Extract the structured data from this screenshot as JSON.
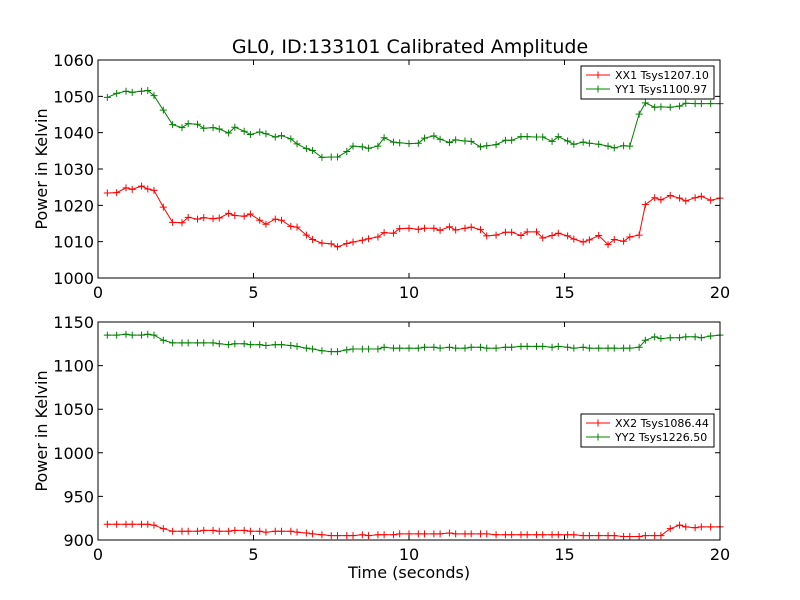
{
  "title": "GL0, ID:133101 Calibrated Amplitude",
  "chart_data": [
    {
      "type": "line",
      "title": "GL0, ID:133101 Calibrated Amplitude",
      "xlabel": "",
      "ylabel": "Power in Kelvin",
      "xlim": [
        0,
        20
      ],
      "ylim": [
        1000,
        1060
      ],
      "xticks": [
        0,
        5,
        10,
        15,
        20
      ],
      "xtick_labels": [
        "0",
        "5",
        "10",
        "15",
        "20"
      ],
      "yticks": [
        1000,
        1010,
        1020,
        1030,
        1040,
        1050,
        1060
      ],
      "ytick_labels": [
        "1000",
        "1010",
        "1020",
        "1030",
        "1040",
        "1050",
        "1060"
      ],
      "grid": false,
      "legend_position": "top-right",
      "x": [
        0.3,
        0.6,
        0.9,
        1.1,
        1.4,
        1.6,
        1.8,
        2.1,
        2.4,
        2.7,
        2.9,
        3.2,
        3.4,
        3.7,
        3.9,
        4.2,
        4.4,
        4.7,
        4.9,
        5.2,
        5.4,
        5.7,
        5.9,
        6.2,
        6.4,
        6.7,
        6.9,
        7.2,
        7.5,
        7.7,
        8.0,
        8.2,
        8.5,
        8.7,
        9.0,
        9.2,
        9.5,
        9.7,
        10.0,
        10.3,
        10.5,
        10.8,
        11.0,
        11.3,
        11.5,
        11.8,
        12.0,
        12.3,
        12.5,
        12.8,
        13.1,
        13.3,
        13.6,
        13.8,
        14.1,
        14.3,
        14.6,
        14.8,
        15.1,
        15.3,
        15.6,
        15.8,
        16.1,
        16.4,
        16.6,
        16.9,
        17.1,
        17.4,
        17.6,
        17.9,
        18.1,
        18.4,
        18.7,
        18.9,
        19.2,
        19.4,
        19.7,
        20.0
      ],
      "series": [
        {
          "name": "XX1 Tsys1207.10",
          "color": "#ff0000",
          "values": [
            1023.4,
            1023.5,
            1024.8,
            1024.4,
            1025.3,
            1024.5,
            1024.1,
            1019.5,
            1015.3,
            1015.2,
            1016.7,
            1016.2,
            1016.6,
            1016.3,
            1016.5,
            1017.8,
            1017.2,
            1017.0,
            1017.6,
            1015.9,
            1014.8,
            1016.2,
            1015.9,
            1014.2,
            1014.0,
            1011.8,
            1010.6,
            1009.6,
            1009.4,
            1008.6,
            1009.5,
            1009.9,
            1010.4,
            1010.8,
            1011.3,
            1012.5,
            1012.3,
            1013.6,
            1013.7,
            1013.4,
            1013.7,
            1013.7,
            1013.1,
            1014.1,
            1013.2,
            1013.7,
            1014.0,
            1013.3,
            1011.6,
            1011.8,
            1012.6,
            1012.6,
            1011.7,
            1012.7,
            1012.7,
            1011.0,
            1011.7,
            1012.3,
            1011.6,
            1010.7,
            1009.9,
            1010.5,
            1011.7,
            1009.2,
            1010.6,
            1010.1,
            1011.3,
            1011.8,
            1020.2,
            1022.1,
            1021.5,
            1022.7,
            1022.0,
            1021.2,
            1022.1,
            1022.5,
            1021.4,
            1022.0
          ]
        },
        {
          "name": "YY1 Tsys1100.97",
          "color": "#008000",
          "values": [
            1049.7,
            1050.8,
            1051.4,
            1051.1,
            1051.4,
            1051.6,
            1050.2,
            1046.2,
            1042.2,
            1041.4,
            1042.5,
            1042.3,
            1041.2,
            1041.4,
            1041.0,
            1039.9,
            1041.5,
            1040.4,
            1039.5,
            1040.2,
            1039.7,
            1038.8,
            1039.2,
            1038.3,
            1036.9,
            1035.6,
            1035.1,
            1033.2,
            1033.3,
            1033.3,
            1034.8,
            1036.3,
            1036.1,
            1035.7,
            1036.3,
            1038.6,
            1037.4,
            1037.2,
            1037.0,
            1037.1,
            1038.5,
            1039.1,
            1038.2,
            1037.3,
            1038.0,
            1037.7,
            1037.6,
            1036.1,
            1036.4,
            1036.7,
            1037.9,
            1037.9,
            1038.9,
            1038.9,
            1038.8,
            1038.8,
            1037.6,
            1038.9,
            1037.7,
            1036.8,
            1037.4,
            1037.1,
            1036.8,
            1036.3,
            1035.8,
            1036.4,
            1036.3,
            1045.1,
            1048.2,
            1047.0,
            1047.1,
            1047.0,
            1047.3,
            1048.1,
            1048.0,
            1048.0,
            1048.0,
            1048.0
          ]
        }
      ]
    },
    {
      "type": "line",
      "title": "",
      "xlabel": "Time (seconds)",
      "ylabel": "Power in Kelvin",
      "xlim": [
        0,
        20
      ],
      "ylim": [
        900,
        1150
      ],
      "xticks": [
        0,
        5,
        10,
        15,
        20
      ],
      "xtick_labels": [
        "0",
        "5",
        "10",
        "15",
        "20"
      ],
      "yticks": [
        900,
        950,
        1000,
        1050,
        1100,
        1150
      ],
      "ytick_labels": [
        "900",
        "950",
        "1000",
        "1050",
        "1100",
        "1150"
      ],
      "grid": false,
      "legend_position": "center-right",
      "x": [
        0.3,
        0.6,
        0.9,
        1.1,
        1.4,
        1.6,
        1.8,
        2.1,
        2.4,
        2.7,
        2.9,
        3.2,
        3.4,
        3.7,
        3.9,
        4.2,
        4.4,
        4.7,
        4.9,
        5.2,
        5.4,
        5.7,
        5.9,
        6.2,
        6.4,
        6.7,
        6.9,
        7.2,
        7.5,
        7.7,
        8.0,
        8.2,
        8.5,
        8.7,
        9.0,
        9.2,
        9.5,
        9.7,
        10.0,
        10.3,
        10.5,
        10.8,
        11.0,
        11.3,
        11.5,
        11.8,
        12.0,
        12.3,
        12.5,
        12.8,
        13.1,
        13.3,
        13.6,
        13.8,
        14.1,
        14.3,
        14.6,
        14.8,
        15.1,
        15.3,
        15.6,
        15.8,
        16.1,
        16.4,
        16.6,
        16.9,
        17.1,
        17.4,
        17.6,
        17.9,
        18.1,
        18.4,
        18.7,
        18.9,
        19.2,
        19.4,
        19.7,
        20.0
      ],
      "series": [
        {
          "name": "XX2 Tsys1086.44",
          "color": "#ff0000",
          "values": [
            918,
            918,
            918,
            918,
            918,
            918,
            917,
            913,
            910,
            910,
            910,
            910,
            911,
            911,
            910,
            910,
            911,
            911,
            910,
            910,
            909,
            910,
            910,
            910,
            909,
            908,
            907,
            906,
            905,
            905,
            905,
            905,
            906,
            905,
            906,
            906,
            906,
            907,
            907,
            907,
            907,
            907,
            907,
            908,
            907,
            907,
            907,
            907,
            907,
            906,
            906,
            906,
            906,
            906,
            906,
            906,
            906,
            906,
            906,
            906,
            905,
            905,
            905,
            905,
            905,
            904,
            904,
            904,
            905,
            905,
            905,
            913,
            917,
            915,
            914,
            915,
            915,
            915
          ]
        },
        {
          "name": "YY2 Tsys1226.50",
          "color": "#008000",
          "values": [
            1135,
            1135,
            1136,
            1135,
            1135,
            1136,
            1135,
            1129,
            1126,
            1126,
            1126,
            1126,
            1126,
            1126,
            1125,
            1124,
            1125,
            1125,
            1124,
            1124,
            1123,
            1124,
            1124,
            1123,
            1122,
            1120,
            1119,
            1117,
            1116,
            1116,
            1118,
            1119,
            1119,
            1119,
            1119,
            1121,
            1120,
            1120,
            1120,
            1120,
            1121,
            1121,
            1120,
            1121,
            1120,
            1120,
            1121,
            1121,
            1120,
            1120,
            1121,
            1121,
            1122,
            1122,
            1122,
            1122,
            1121,
            1122,
            1121,
            1120,
            1121,
            1120,
            1120,
            1120,
            1120,
            1120,
            1120,
            1121,
            1129,
            1133,
            1131,
            1132,
            1132,
            1133,
            1133,
            1132,
            1134,
            1135
          ]
        }
      ]
    }
  ]
}
